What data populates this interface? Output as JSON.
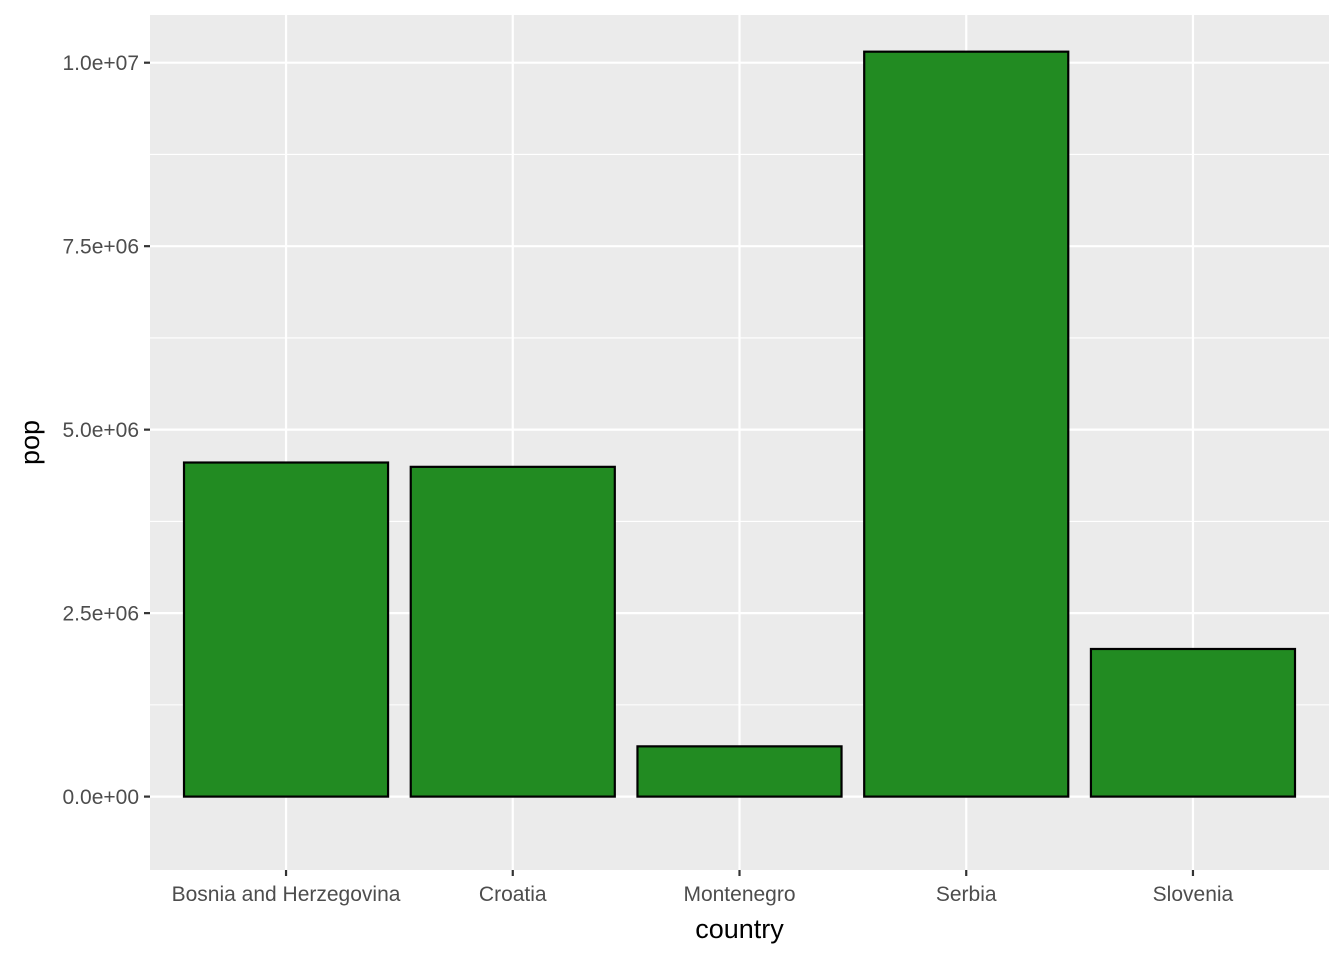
{
  "chart_data": {
    "type": "bar",
    "categories": [
      "Bosnia and Herzegovina",
      "Croatia",
      "Montenegro",
      "Serbia",
      "Slovenia"
    ],
    "values": [
      4552198,
      4493312,
      684736,
      10150265,
      2011497
    ],
    "title": "",
    "xlabel": "country",
    "ylabel": "pop",
    "ylim": [
      -1000000,
      10650000
    ],
    "yticks": [
      {
        "value": 0,
        "label": "0.0e+00"
      },
      {
        "value": 2500000,
        "label": "2.5e+06"
      },
      {
        "value": 5000000,
        "label": "5.0e+06"
      },
      {
        "value": 7500000,
        "label": "7.5e+06"
      },
      {
        "value": 10000000,
        "label": "1.0e+07"
      }
    ],
    "grid": true,
    "legend": "none",
    "colors": {
      "bar_fill": "#228B22",
      "bar_stroke": "#000000",
      "panel_bg": "#EBEBEB",
      "grid": "#FFFFFF",
      "tick_text": "#4D4D4D",
      "tick_mark": "#333333"
    }
  }
}
